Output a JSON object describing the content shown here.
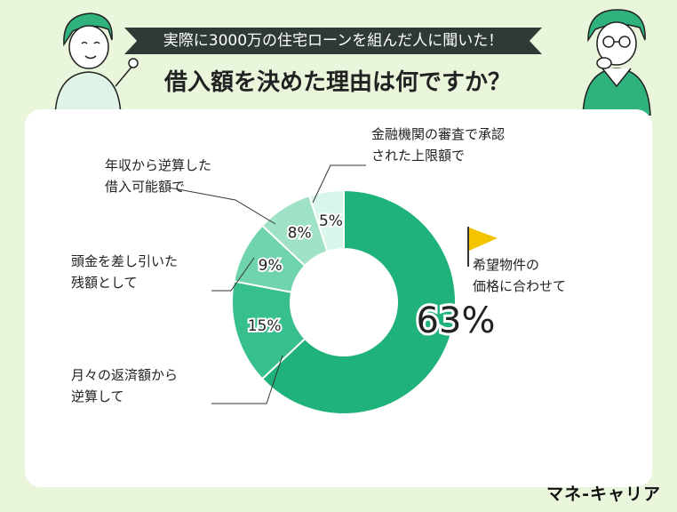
{
  "header": {
    "banner": "実際に3000万の住宅ローンを組んだ人に聞いた！",
    "title": "借入額を決めた理由は何ですか？"
  },
  "brand": "マネ-キャリア",
  "colors": {
    "background": "#e9f6dc",
    "banner": "#2f3a37",
    "flag": "#f5c400",
    "slices": [
      "#1fb27a",
      "#37c08d",
      "#6fd3ac",
      "#9fe2c6",
      "#d9f6ea"
    ]
  },
  "chart_data": {
    "type": "pie",
    "donut": true,
    "title": "借入額を決めた理由は何ですか？",
    "slices": [
      {
        "label_lines": [
          "希望物件の",
          "価格に合わせて"
        ],
        "value": 63,
        "value_label": "63%"
      },
      {
        "label_lines": [
          "月々の返済額から",
          "逆算して"
        ],
        "value": 15,
        "value_label": "15%"
      },
      {
        "label_lines": [
          "頭金を差し引いた",
          "残額として"
        ],
        "value": 9,
        "value_label": "9%"
      },
      {
        "label_lines": [
          "年収から逆算した",
          "借入可能額で"
        ],
        "value": 8,
        "value_label": "8%"
      },
      {
        "label_lines": [
          "金融機関の審査で承認",
          "された上限額で"
        ],
        "value": 5,
        "value_label": "5%"
      }
    ]
  }
}
